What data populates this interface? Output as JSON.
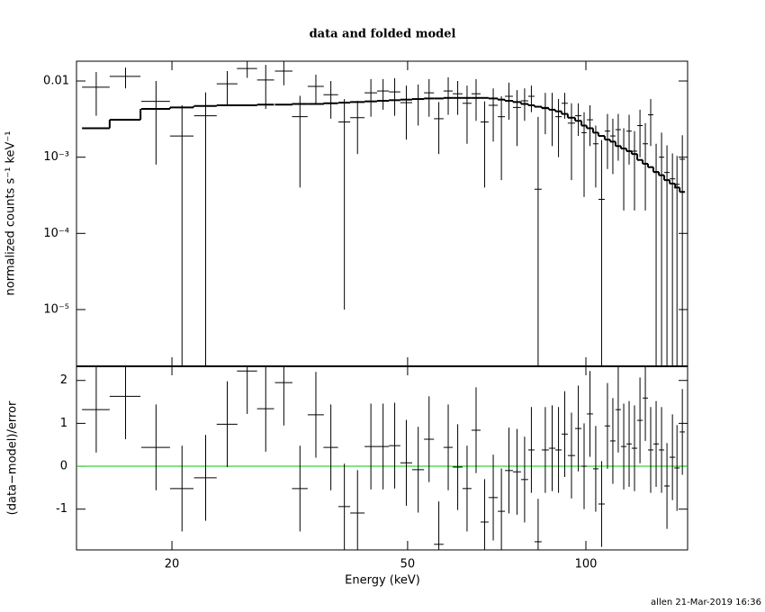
{
  "chart_data": [
    {
      "type": "spectrum",
      "title": "data and folded model",
      "ylabel": "normalized counts s⁻¹ keV⁻¹",
      "log_x": true,
      "log_y": true,
      "xlim": [
        13.8,
        148.5
      ],
      "ylim": [
        1.8e-06,
        0.0182
      ],
      "yticks": [
        {
          "value": 1e-05,
          "label": "10⁻⁵"
        },
        {
          "value": 0.0001,
          "label": "10⁻⁴"
        },
        {
          "value": 0.001,
          "label": "10⁻³"
        },
        0.01
      ],
      "color": "#000000",
      "model_color": "#000000",
      "x": [
        14.9,
        16.7,
        18.8,
        20.8,
        22.8,
        24.8,
        26.8,
        28.8,
        30.9,
        32.9,
        35.0,
        37.1,
        39.1,
        41.15,
        43.35,
        45.45,
        47.55,
        49.75,
        52.1,
        54.35,
        56.45,
        58.55,
        60.75,
        63.0,
        65.25,
        67.45,
        69.75,
        72.0,
        74.15,
        76.5,
        78.8,
        80.9,
        83.05,
        85.4,
        87.7,
        89.9,
        92.1,
        94.55,
        97.1,
        99.3,
        101.6,
        103.9,
        106.3,
        108.75,
        111.05,
        113.4,
        115.85,
        118.3,
        120.8,
        123.4,
        126.0,
        128.65,
        131.4,
        134.2,
        137.05,
        140.0,
        142.5,
        145.5
      ],
      "x_err": [
        0.8,
        1.0,
        1.05,
        0.95,
        1.0,
        1.0,
        1.05,
        0.95,
        1.05,
        1.0,
        1.1,
        1.05,
        0.9,
        1.15,
        1.05,
        1.05,
        1.05,
        1.15,
        1.2,
        1.05,
        1.05,
        1.05,
        1.15,
        1.1,
        1.15,
        1.05,
        1.25,
        1.0,
        1.15,
        1.2,
        1.1,
        1.0,
        1.15,
        1.2,
        1.1,
        1.1,
        1.1,
        1.35,
        1.2,
        1.0,
        1.2,
        1.1,
        1.3,
        1.15,
        1.15,
        1.2,
        1.25,
        1.2,
        1.3,
        1.3,
        1.3,
        1.35,
        1.4,
        1.4,
        1.45,
        1.5,
        1.5,
        1.5
      ],
      "values": [
        0.0083,
        0.0115,
        0.0054,
        0.0019,
        0.0035,
        0.0092,
        0.0146,
        0.0103,
        0.0135,
        0.0034,
        0.0085,
        0.0066,
        0.0029,
        0.0033,
        0.007,
        0.0074,
        0.0072,
        0.0052,
        0.0058,
        0.007,
        0.0032,
        0.0074,
        0.0068,
        0.0051,
        0.0068,
        0.0029,
        0.0048,
        0.0034,
        0.0063,
        0.0045,
        0.0055,
        0.0063,
        0.00038,
        0.0045,
        0.0042,
        0.0034,
        0.0051,
        0.0028,
        0.0035,
        0.0021,
        0.0031,
        0.0015,
        0.00028,
        0.0022,
        0.0019,
        0.0023,
        0.0013,
        0.0022,
        0.0012,
        0.0026,
        0.0015,
        0.0036,
        0.00063,
        0.001,
        0.00063,
        0.00052,
        0.00044,
        0.00094
      ],
      "y_err": [
        0.0048,
        0.0035,
        0.0046,
        0.0029,
        0.0036,
        0.0043,
        0.0036,
        0.006,
        0.0047,
        0.003,
        0.0036,
        0.0034,
        0.00289,
        0.0022,
        0.0036,
        0.0032,
        0.0037,
        0.0035,
        0.0032,
        0.0036,
        0.0021,
        0.0038,
        0.0032,
        0.0036,
        0.0038,
        0.0025,
        0.0032,
        0.0029,
        0.0032,
        0.0031,
        0.0025,
        0.0024,
        0.003,
        0.0025,
        0.0028,
        0.0024,
        0.0019,
        0.0023,
        0.0016,
        0.0018,
        0.0017,
        0.0011,
        0.0014,
        0.0015,
        0.0013,
        0.0014,
        0.0011,
        0.0014,
        0.001,
        0.0016,
        0.0013,
        0.0022,
        0.00087,
        0.0011,
        0.0008,
        0.0006,
        0.0006,
        0.001
      ],
      "model": [
        0.0024,
        0.0031,
        0.0043,
        0.0045,
        0.0047,
        0.0048,
        0.0048,
        0.0049,
        0.0049,
        0.005,
        0.005,
        0.0051,
        0.0052,
        0.0053,
        0.0054,
        0.0055,
        0.0056,
        0.0057,
        0.0058,
        0.0059,
        0.0059,
        0.006,
        0.006,
        0.006,
        0.006,
        0.006,
        0.0059,
        0.0057,
        0.0055,
        0.0053,
        0.005,
        0.0048,
        0.0046,
        0.0044,
        0.0042,
        0.004,
        0.0037,
        0.0033,
        0.003,
        0.0026,
        0.0024,
        0.0021,
        0.0019,
        0.0017,
        0.0016,
        0.0014,
        0.0013,
        0.0012,
        0.0011,
        0.00092,
        0.00082,
        0.00074,
        0.00064,
        0.00058,
        0.0005,
        0.00045,
        0.0004,
        0.00035
      ]
    },
    {
      "type": "residual",
      "xlabel": "Energy (keV)",
      "ylabel": "(data−model)/error",
      "log_x": true,
      "xlim": [
        13.8,
        148.5
      ],
      "xticks": [
        20,
        50,
        100
      ],
      "ylim": [
        -1.95,
        2.33
      ],
      "yticks": [
        -1,
        0,
        1,
        2
      ],
      "color": "#000000",
      "zero_line_color": "#00cc00",
      "y_err": 1,
      "values": [
        1.32,
        1.63,
        0.44,
        -0.52,
        -0.27,
        0.98,
        2.22,
        1.34,
        1.95,
        -0.52,
        1.2,
        0.44,
        -0.94,
        -1.09,
        0.46,
        0.46,
        0.48,
        0.08,
        -0.08,
        0.63,
        -1.82,
        0.44,
        -0.02,
        -0.52,
        0.84,
        -1.3,
        -0.73,
        -1.05,
        -0.1,
        -0.13,
        -0.31,
        0.38,
        -1.76,
        0.38,
        0.42,
        0.38,
        0.75,
        0.25,
        0.88,
        0.0,
        1.22,
        -0.06,
        -0.88,
        0.94,
        0.59,
        1.32,
        0.46,
        0.52,
        0.42,
        1.07,
        1.59,
        0.38,
        0.52,
        0.38,
        -0.46,
        0.21,
        -0.04,
        0.8
      ]
    }
  ],
  "footer": "allen 21-Mar-2019 16:36"
}
